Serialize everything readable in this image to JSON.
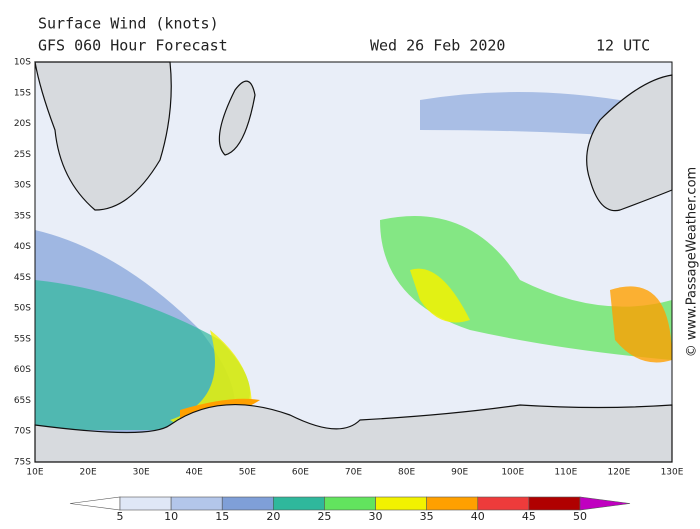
{
  "header": {
    "title": "Surface Wind (knots)",
    "subtitle": "GFS 060 Hour Forecast",
    "date": "Wed 26 Feb 2020",
    "time": "12 UTC"
  },
  "map": {
    "lat_labels": [
      "10S",
      "15S",
      "20S",
      "25S",
      "30S",
      "35S",
      "40S",
      "45S",
      "50S",
      "55S",
      "60S",
      "65S",
      "70S",
      "75S"
    ],
    "lon_labels": [
      "10E",
      "20E",
      "30E",
      "40E",
      "50E",
      "60E",
      "70E",
      "80E",
      "90E",
      "100E",
      "110E",
      "120E",
      "130E"
    ]
  },
  "colorbar": {
    "labels": [
      "5",
      "10",
      "15",
      "20",
      "25",
      "30",
      "35",
      "40",
      "45",
      "50"
    ],
    "colors": [
      "#ffffff",
      "#dfe7f6",
      "#b3c6ea",
      "#7f9fd8",
      "#2fb89c",
      "#62e45e",
      "#f2f200",
      "#ffa000",
      "#ee3b3b",
      "#b00000",
      "#c000c0"
    ]
  },
  "credit": "© www.PassageWeather.com"
}
